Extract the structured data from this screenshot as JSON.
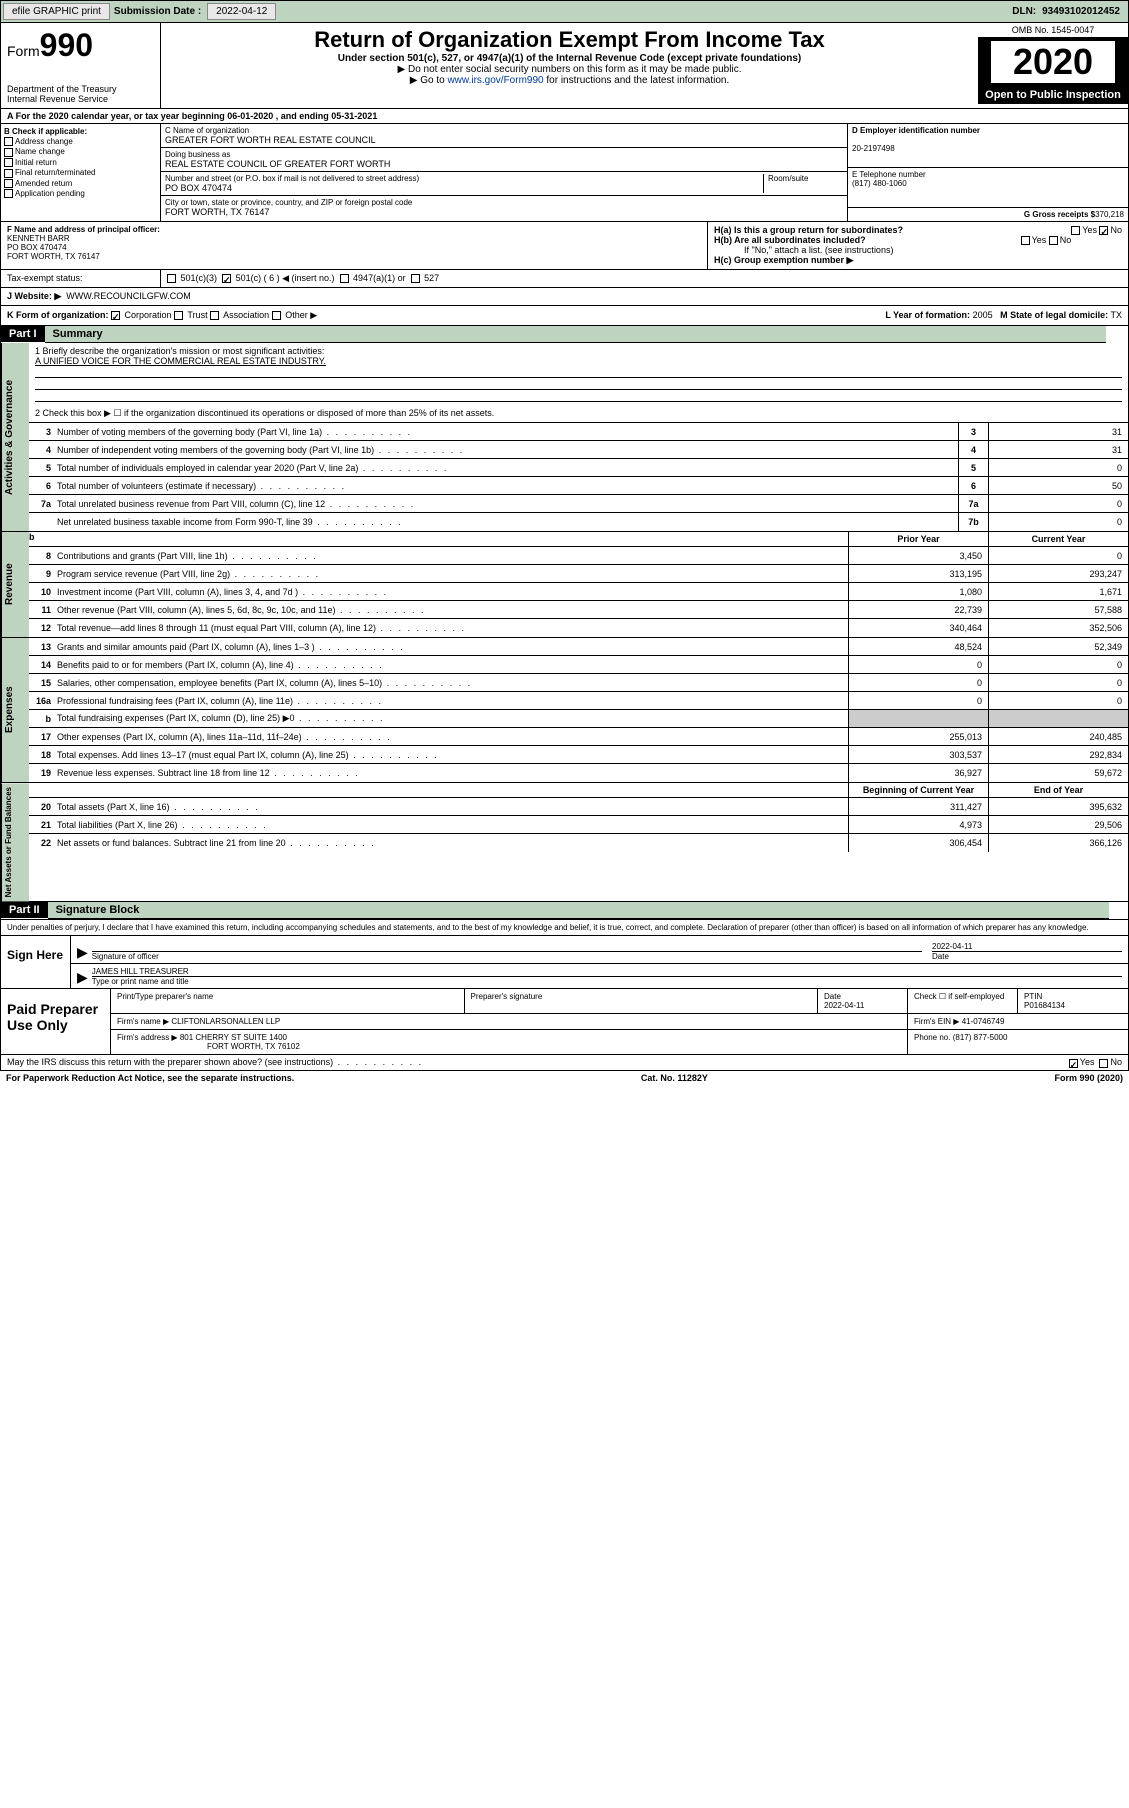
{
  "topbar": {
    "efile": "efile GRAPHIC print",
    "sub_lbl": "Submission Date :",
    "sub_date": "2022-04-12",
    "dln_lbl": "DLN:",
    "dln": "93493102012452"
  },
  "header": {
    "form_word": "Form",
    "form_num": "990",
    "dept": "Department of the Treasury\nInternal Revenue Service",
    "title": "Return of Organization Exempt From Income Tax",
    "sub": "Under section 501(c), 527, or 4947(a)(1) of the Internal Revenue Code (except private foundations)",
    "arrow1": "▶ Do not enter social security numbers on this form as it may be made public.",
    "arrow2_pre": "▶ Go to ",
    "arrow2_link": "www.irs.gov/Form990",
    "arrow2_post": " for instructions and the latest information.",
    "omb": "OMB No. 1545-0047",
    "year": "2020",
    "open": "Open to Public Inspection"
  },
  "row_a": "A For the 2020 calendar year, or tax year beginning 06-01-2020    , and ending 05-31-2021",
  "col_b": {
    "hdr": "B Check if applicable:",
    "items": [
      "Address change",
      "Name change",
      "Initial return",
      "Final return/terminated",
      "Amended return",
      "Application pending"
    ]
  },
  "col_c": {
    "name_cap": "C Name of organization",
    "name": "GREATER FORT WORTH REAL ESTATE COUNCIL",
    "dba_cap": "Doing business as",
    "dba": "REAL ESTATE COUNCIL OF GREATER FORT WORTH",
    "addr_cap": "Number and street (or P.O. box if mail is not delivered to street address)",
    "room_cap": "Room/suite",
    "addr": "PO BOX 470474",
    "city_cap": "City or town, state or province, country, and ZIP or foreign postal code",
    "city": "FORT WORTH, TX  76147"
  },
  "col_d": {
    "ein_cap": "D Employer identification number",
    "ein": "20-2197498",
    "tel_cap": "E Telephone number",
    "tel": "(817) 480-1060",
    "gross_cap": "G Gross receipts $",
    "gross": "370,218"
  },
  "row_f": {
    "cap": "F Name and address of principal officer:",
    "name": "KENNETH BARR",
    "addr1": "PO BOX 470474",
    "addr2": "FORT WORTH, TX  76147",
    "ha": "H(a)  Is this a group return for subordinates?",
    "hb": "H(b)  Are all subordinates included?",
    "hb_note": "If \"No,\" attach a list. (see instructions)",
    "hc": "H(c)  Group exemption number ▶",
    "yes": "Yes",
    "no": "No"
  },
  "tax_status": {
    "lbl": "Tax-exempt status:",
    "o1": "501(c)(3)",
    "o2": "501(c) ( 6 ) ◀ (insert no.)",
    "o3": "4947(a)(1) or",
    "o4": "527"
  },
  "row_j": {
    "lbl": "J  Website: ▶",
    "val": "WWW.RECOUNCILGFW.COM"
  },
  "row_k": {
    "lbl": "K Form of organization:",
    "o1": "Corporation",
    "o2": "Trust",
    "o3": "Association",
    "o4": "Other ▶",
    "l_lbl": "L Year of formation:",
    "l_val": "2005",
    "m_lbl": "M State of legal domicile:",
    "m_val": "TX"
  },
  "part1": {
    "hdr": "Part I",
    "title": "Summary"
  },
  "mission": {
    "line1_lbl": "1  Briefly describe the organization's mission or most significant activities:",
    "line1_val": "A UNIFIED VOICE FOR THE COMMERCIAL REAL ESTATE INDUSTRY.",
    "line2": "2   Check this box ▶ ☐  if the organization discontinued its operations or disposed of more than 25% of its net assets."
  },
  "gov_lines": [
    {
      "n": "3",
      "t": "Number of voting members of the governing body (Part VI, line 1a)",
      "b": "3",
      "v": "31"
    },
    {
      "n": "4",
      "t": "Number of independent voting members of the governing body (Part VI, line 1b)",
      "b": "4",
      "v": "31"
    },
    {
      "n": "5",
      "t": "Total number of individuals employed in calendar year 2020 (Part V, line 2a)",
      "b": "5",
      "v": "0"
    },
    {
      "n": "6",
      "t": "Total number of volunteers (estimate if necessary)",
      "b": "6",
      "v": "50"
    },
    {
      "n": "7a",
      "t": "Total unrelated business revenue from Part VIII, column (C), line 12",
      "b": "7a",
      "v": "0"
    },
    {
      "n": "",
      "t": "Net unrelated business taxable income from Form 990-T, line 39",
      "b": "7b",
      "v": "0"
    }
  ],
  "col_hdrs": {
    "prior": "Prior Year",
    "current": "Current Year",
    "begin": "Beginning of Current Year",
    "end": "End of Year"
  },
  "rev_lines": [
    {
      "n": "8",
      "t": "Contributions and grants (Part VIII, line 1h)",
      "p": "3,450",
      "c": "0"
    },
    {
      "n": "9",
      "t": "Program service revenue (Part VIII, line 2g)",
      "p": "313,195",
      "c": "293,247"
    },
    {
      "n": "10",
      "t": "Investment income (Part VIII, column (A), lines 3, 4, and 7d )",
      "p": "1,080",
      "c": "1,671"
    },
    {
      "n": "11",
      "t": "Other revenue (Part VIII, column (A), lines 5, 6d, 8c, 9c, 10c, and 11e)",
      "p": "22,739",
      "c": "57,588"
    },
    {
      "n": "12",
      "t": "Total revenue—add lines 8 through 11 (must equal Part VIII, column (A), line 12)",
      "p": "340,464",
      "c": "352,506"
    }
  ],
  "exp_lines": [
    {
      "n": "13",
      "t": "Grants and similar amounts paid (Part IX, column (A), lines 1–3 )",
      "p": "48,524",
      "c": "52,349"
    },
    {
      "n": "14",
      "t": "Benefits paid to or for members (Part IX, column (A), line 4)",
      "p": "0",
      "c": "0"
    },
    {
      "n": "15",
      "t": "Salaries, other compensation, employee benefits (Part IX, column (A), lines 5–10)",
      "p": "0",
      "c": "0"
    },
    {
      "n": "16a",
      "t": "Professional fundraising fees (Part IX, column (A), line 11e)",
      "p": "0",
      "c": "0"
    },
    {
      "n": "b",
      "t": "Total fundraising expenses (Part IX, column (D), line 25) ▶0",
      "p": "",
      "c": "",
      "grey": true
    },
    {
      "n": "17",
      "t": "Other expenses (Part IX, column (A), lines 11a–11d, 11f–24e)",
      "p": "255,013",
      "c": "240,485"
    },
    {
      "n": "18",
      "t": "Total expenses. Add lines 13–17 (must equal Part IX, column (A), line 25)",
      "p": "303,537",
      "c": "292,834"
    },
    {
      "n": "19",
      "t": "Revenue less expenses. Subtract line 18 from line 12",
      "p": "36,927",
      "c": "59,672"
    }
  ],
  "net_lines": [
    {
      "n": "20",
      "t": "Total assets (Part X, line 16)",
      "p": "311,427",
      "c": "395,632"
    },
    {
      "n": "21",
      "t": "Total liabilities (Part X, line 26)",
      "p": "4,973",
      "c": "29,506"
    },
    {
      "n": "22",
      "t": "Net assets or fund balances. Subtract line 21 from line 20",
      "p": "306,454",
      "c": "366,126"
    }
  ],
  "side_labels": {
    "gov": "Activities & Governance",
    "rev": "Revenue",
    "exp": "Expenses",
    "net": "Net Assets or Fund Balances"
  },
  "part2": {
    "hdr": "Part II",
    "title": "Signature Block"
  },
  "sig": {
    "decl": "Under penalties of perjury, I declare that I have examined this return, including accompanying schedules and statements, and to the best of my knowledge and belief, it is true, correct, and complete. Declaration of preparer (other than officer) is based on all information of which preparer has any knowledge.",
    "sign_here": "Sign Here",
    "sig_of": "Signature of officer",
    "date_lbl": "Date",
    "date": "2022-04-11",
    "name": "JAMES HILL  TREASURER",
    "name_cap": "Type or print name and title"
  },
  "paid": {
    "hdr": "Paid Preparer Use Only",
    "pt_name_cap": "Print/Type preparer's name",
    "sig_cap": "Preparer's signature",
    "date_cap": "Date",
    "date": "2022-04-11",
    "check_cap": "Check ☐ if self-employed",
    "ptin_cap": "PTIN",
    "ptin": "P01684134",
    "firm_name_cap": "Firm's name    ▶",
    "firm_name": "CLIFTONLARSONALLEN LLP",
    "firm_ein_cap": "Firm's EIN ▶",
    "firm_ein": "41-0746749",
    "firm_addr_cap": "Firm's address ▶",
    "firm_addr1": "801 CHERRY ST SUITE 1400",
    "firm_addr2": "FORT WORTH, TX  76102",
    "phone_cap": "Phone no.",
    "phone": "(817) 877-5000"
  },
  "discuss": {
    "q": "May the IRS discuss this return with the preparer shown above? (see instructions)",
    "yes": "Yes",
    "no": "No"
  },
  "bottom": {
    "l": "For Paperwork Reduction Act Notice, see the separate instructions.",
    "c": "Cat. No. 11282Y",
    "r": "Form 990 (2020)"
  }
}
